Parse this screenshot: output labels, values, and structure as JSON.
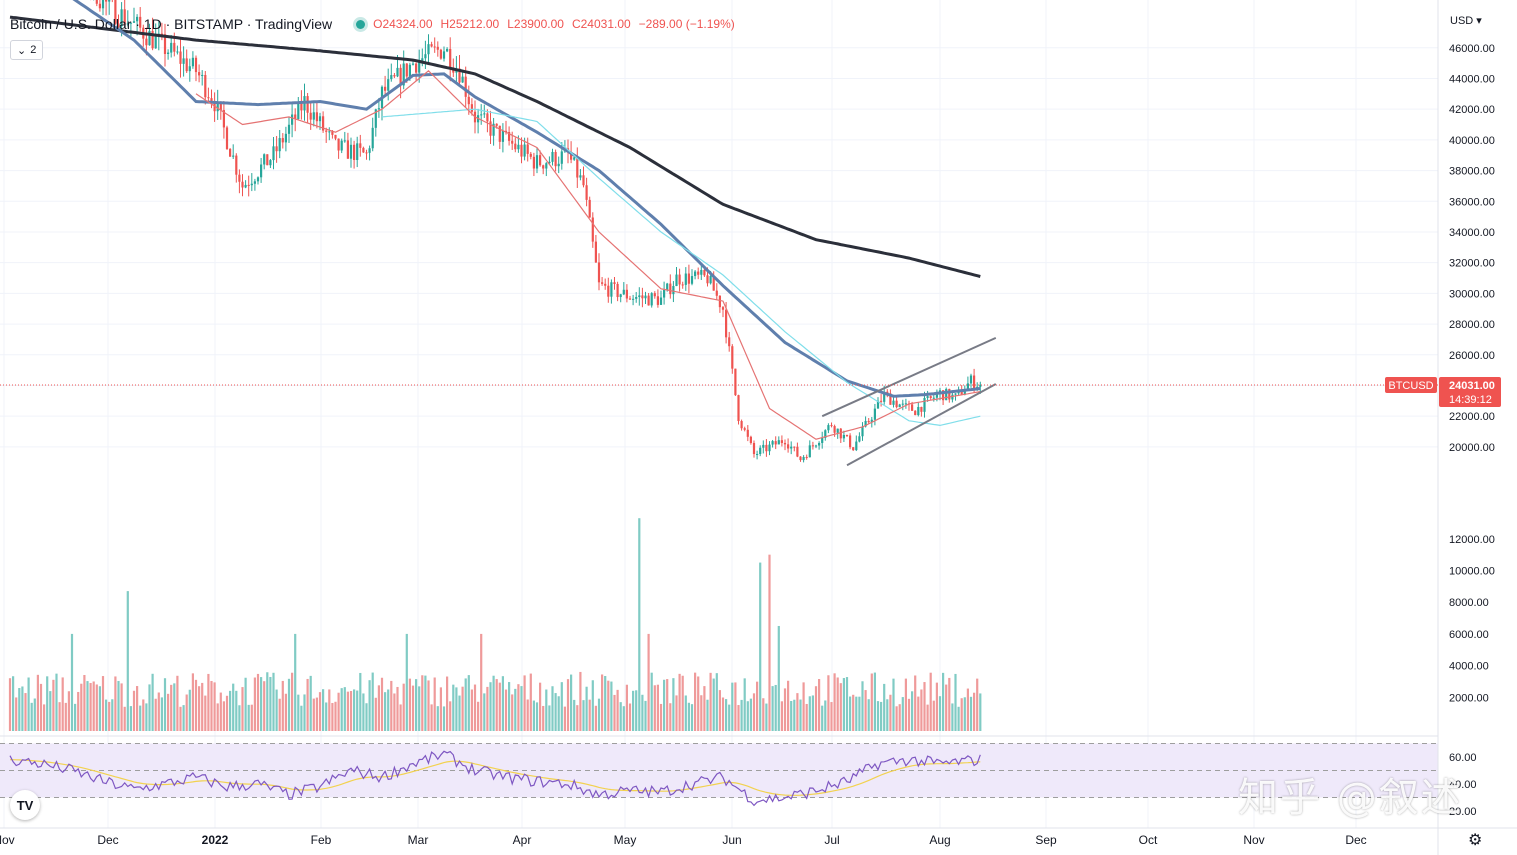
{
  "header": {
    "symbol": "Bitcoin / U.S. Dollar · 1D · BITSTAMP · TradingView",
    "open": "O24324.00",
    "high": "H25212.00",
    "low": "L23900.00",
    "close": "C24031.00",
    "change": "−289.00 (−1.19%)",
    "status_color": "#26a69a"
  },
  "toolbar": {
    "indicator_count": "2",
    "currency": "USD"
  },
  "price_label": {
    "name": "BTCUSD",
    "value": "24031.00",
    "countdown": "14:39:12"
  },
  "watermark": "知乎 @叙述",
  "chart_data": [
    {
      "type": "candlestick",
      "price_axis": {
        "ticks": [
          20000,
          22000,
          24000,
          26000,
          28000,
          30000,
          32000,
          34000,
          36000,
          38000,
          40000,
          42000,
          44000,
          46000
        ],
        "range": [
          18000,
          46000
        ]
      },
      "price_axis_labels": [
        "20000.00",
        "22000.00",
        "24000.00",
        "26000.00",
        "28000.00",
        "30000.00",
        "32000.00",
        "34000.00",
        "36000.00",
        "38000.00",
        "40000.00",
        "42000.00",
        "44000.00",
        "46000.00"
      ],
      "time_axis": [
        "Nov",
        "Dec",
        "2022",
        "Feb",
        "Mar",
        "Apr",
        "May",
        "Jun",
        "Jul",
        "Aug",
        "Sep",
        "Oct",
        "Nov",
        "Dec"
      ],
      "close_approx": [
        [
          0,
          57000
        ],
        [
          10,
          55000
        ],
        [
          20,
          52000
        ],
        [
          30,
          49000
        ],
        [
          40,
          47500
        ],
        [
          50,
          46000
        ],
        [
          60,
          44500
        ],
        [
          66,
          42500
        ],
        [
          75,
          37000
        ],
        [
          85,
          39000
        ],
        [
          95,
          42500
        ],
        [
          105,
          39500
        ],
        [
          115,
          39000
        ],
        [
          120,
          43000
        ],
        [
          130,
          45000
        ],
        [
          140,
          46000
        ],
        [
          145,
          44500
        ],
        [
          150,
          41500
        ],
        [
          160,
          40000
        ],
        [
          170,
          38500
        ],
        [
          180,
          39000
        ],
        [
          185,
          37000
        ],
        [
          190,
          30500
        ],
        [
          200,
          29800
        ],
        [
          210,
          29600
        ],
        [
          215,
          31000
        ],
        [
          225,
          31000
        ],
        [
          230,
          29000
        ],
        [
          235,
          22000
        ],
        [
          240,
          19500
        ],
        [
          250,
          20500
        ],
        [
          255,
          19200
        ],
        [
          265,
          21500
        ],
        [
          272,
          20000
        ],
        [
          282,
          23400
        ],
        [
          288,
          22600
        ],
        [
          292,
          22400
        ],
        [
          300,
          23500
        ],
        [
          305,
          23200
        ],
        [
          310,
          24300
        ],
        [
          313,
          24031
        ]
      ],
      "moving_averages": [
        {
          "color": "#2b2f3a",
          "values": [
            [
              0,
              48000
            ],
            [
              60,
              46500
            ],
            [
              100,
              45800
            ],
            [
              130,
              45200
            ],
            [
              150,
              44300
            ],
            [
              170,
              42500
            ],
            [
              200,
              39500
            ],
            [
              230,
              35800
            ],
            [
              260,
              33500
            ],
            [
              290,
              32300
            ],
            [
              313,
              31100
            ]
          ]
        },
        {
          "color": "#5f7fad",
          "values": [
            [
              0,
              52000
            ],
            [
              40,
              46500
            ],
            [
              60,
              42500
            ],
            [
              80,
              42300
            ],
            [
              100,
              42500
            ],
            [
              115,
              42000
            ],
            [
              130,
              44200
            ],
            [
              140,
              44300
            ],
            [
              150,
              42800
            ],
            [
              170,
              40500
            ],
            [
              190,
              38000
            ],
            [
              210,
              34500
            ],
            [
              230,
              30500
            ],
            [
              250,
              26800
            ],
            [
              270,
              24300
            ],
            [
              285,
              23300
            ],
            [
              295,
              23400
            ],
            [
              313,
              23800
            ]
          ]
        },
        {
          "color": "#80deea",
          "values": [
            [
              120,
              41500
            ],
            [
              150,
              42000
            ],
            [
              170,
              41200
            ],
            [
              190,
              37500
            ],
            [
              210,
              34000
            ],
            [
              230,
              31200
            ],
            [
              250,
              27500
            ],
            [
              270,
              24200
            ],
            [
              290,
              21700
            ],
            [
              300,
              21400
            ],
            [
              313,
              22000
            ]
          ]
        },
        {
          "color": "#e57373",
          "values": [
            [
              60,
              43000
            ],
            [
              75,
              41000
            ],
            [
              90,
              41500
            ],
            [
              105,
              40500
            ],
            [
              120,
              42000
            ],
            [
              135,
              44500
            ],
            [
              150,
              41500
            ],
            [
              170,
              39500
            ],
            [
              190,
              34000
            ],
            [
              210,
              30300
            ],
            [
              230,
              29500
            ],
            [
              245,
              22500
            ],
            [
              260,
              20500
            ],
            [
              275,
              21300
            ],
            [
              290,
              22800
            ],
            [
              313,
              23600
            ]
          ]
        }
      ],
      "channel_lines": [
        {
          "from": [
            270,
            18800
          ],
          "to": [
            318,
            24100
          ]
        },
        {
          "from": [
            262,
            22000
          ],
          "to": [
            318,
            27100
          ]
        }
      ],
      "current_price_line": 24031
    },
    {
      "type": "bar",
      "name": "Volume",
      "axis_ticks": [
        2000,
        4000,
        6000,
        8000,
        10000,
        12000
      ],
      "axis_labels": [
        "2000.00",
        "4000.00",
        "6000.00",
        "8000.00",
        "10000.00",
        "12000.00"
      ],
      "spikes": [
        [
          38,
          8700
        ],
        [
          203,
          13300
        ],
        [
          242,
          10500
        ],
        [
          245,
          11000
        ],
        [
          20,
          6000
        ],
        [
          92,
          6000
        ],
        [
          128,
          6000
        ],
        [
          152,
          6000
        ],
        [
          206,
          6000
        ],
        [
          248,
          6500
        ]
      ]
    },
    {
      "type": "line",
      "name": "RSI",
      "axis_ticks": [
        20,
        40,
        60
      ],
      "axis_labels": [
        "20.00",
        "40.00",
        "60.00"
      ],
      "band": [
        30,
        70
      ],
      "rsi_approx": [
        [
          0,
          58
        ],
        [
          10,
          55
        ],
        [
          20,
          50
        ],
        [
          30,
          42
        ],
        [
          40,
          36
        ],
        [
          50,
          40
        ],
        [
          60,
          45
        ],
        [
          70,
          38
        ],
        [
          80,
          40
        ],
        [
          90,
          32
        ],
        [
          100,
          38
        ],
        [
          110,
          50
        ],
        [
          120,
          45
        ],
        [
          130,
          55
        ],
        [
          140,
          62
        ],
        [
          150,
          50
        ],
        [
          160,
          45
        ],
        [
          170,
          42
        ],
        [
          180,
          40
        ],
        [
          190,
          32
        ],
        [
          200,
          35
        ],
        [
          210,
          34
        ],
        [
          220,
          40
        ],
        [
          230,
          45
        ],
        [
          240,
          28
        ],
        [
          250,
          30
        ],
        [
          260,
          35
        ],
        [
          270,
          42
        ],
        [
          280,
          55
        ],
        [
          290,
          58
        ],
        [
          300,
          55
        ],
        [
          313,
          58
        ]
      ]
    }
  ]
}
